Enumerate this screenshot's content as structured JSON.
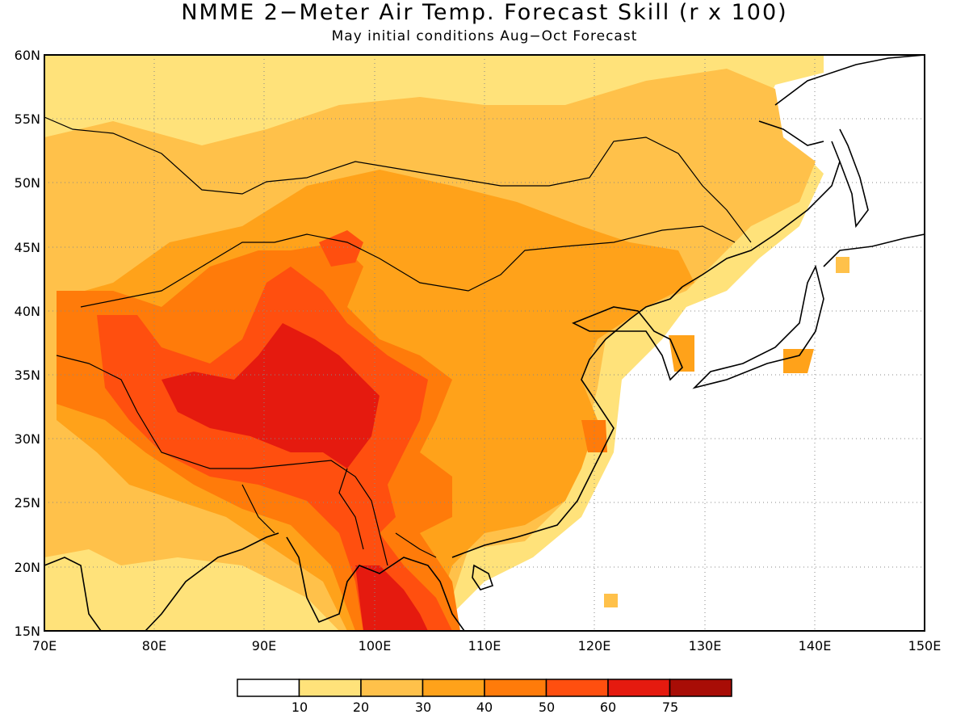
{
  "title": "NMME 2−Meter Air Temp. Forecast Skill (r x 100)",
  "subtitle": "May initial conditions  Aug−Oct Forecast",
  "map": {
    "lon_range": [
      70,
      150
    ],
    "lat_range": [
      15,
      60
    ],
    "lat_ticks": [
      "60N",
      "55N",
      "50N",
      "45N",
      "40N",
      "35N",
      "30N",
      "25N",
      "20N",
      "15N"
    ],
    "lon_ticks": [
      "70E",
      "80E",
      "90E",
      "100E",
      "110E",
      "120E",
      "130E",
      "140E",
      "150E"
    ],
    "grid": "dotted"
  },
  "legend": {
    "levels": [
      "10",
      "20",
      "30",
      "40",
      "50",
      "60",
      "75"
    ],
    "colors": [
      "#ffffff",
      "#ffe27a",
      "#ffc14a",
      "#ffa21a",
      "#ff7b0a",
      "#ff4f0f",
      "#e51a0f",
      "#a80d06"
    ]
  }
}
